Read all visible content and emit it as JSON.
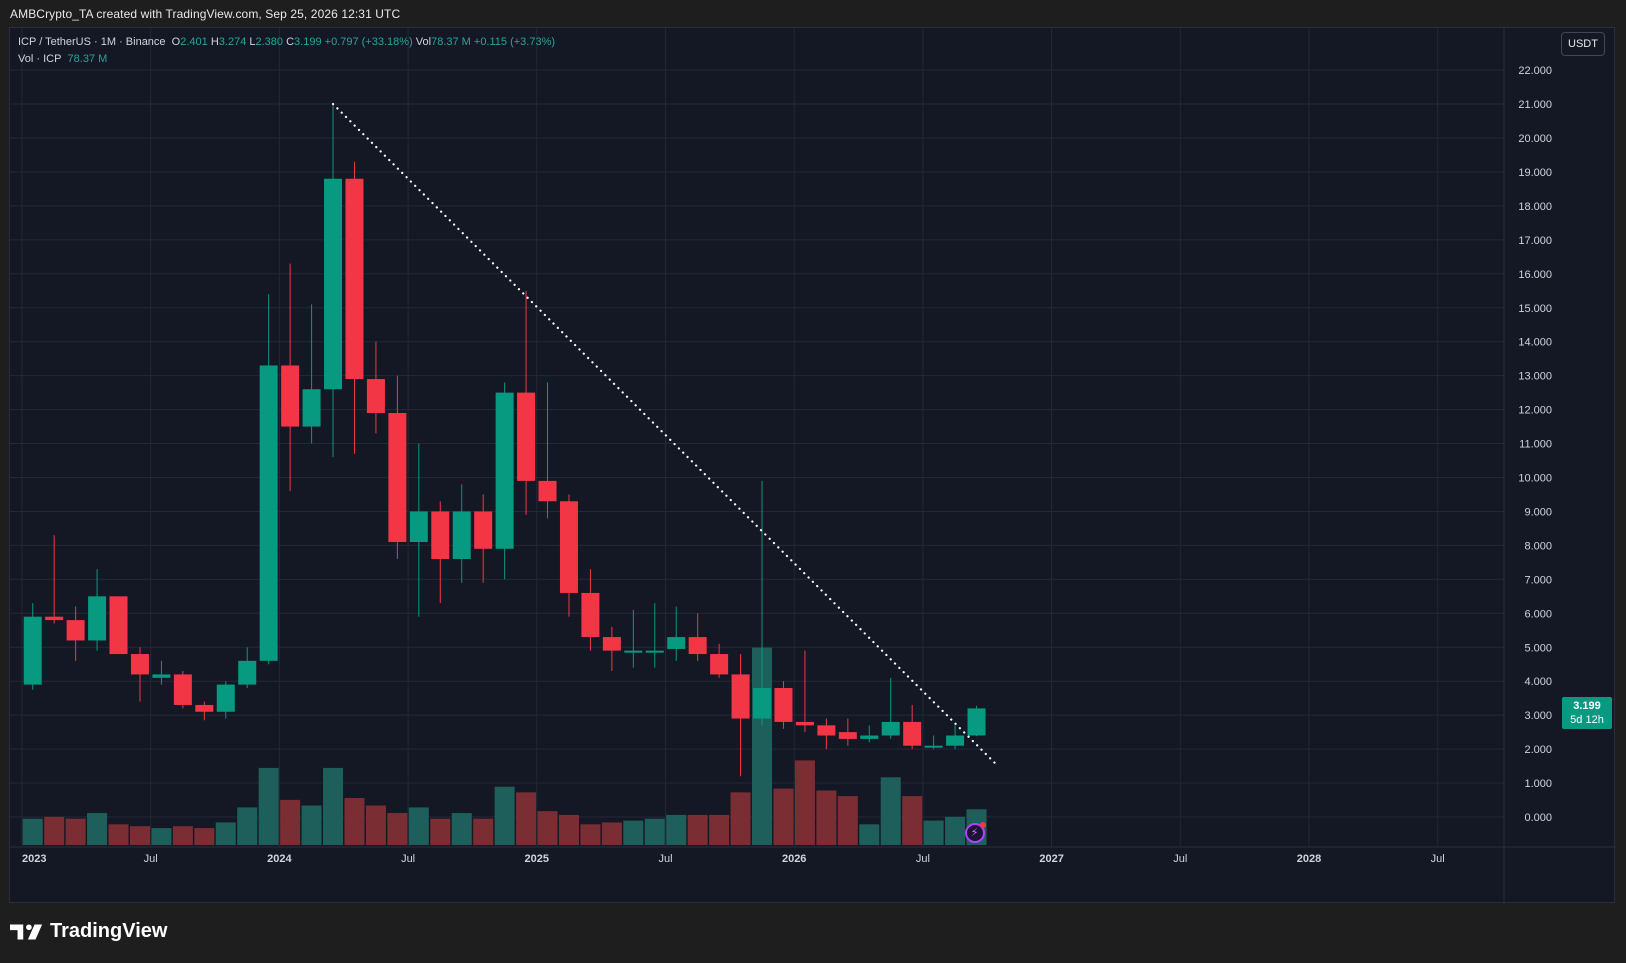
{
  "header": {
    "attribution": "AMBCrypto_TA created with TradingView.com, Sep 25, 2026 12:31 UTC"
  },
  "legend": {
    "symbol": "ICP / TetherUS · 1M · Binance",
    "open_label": "O",
    "open": "2.401",
    "high_label": "H",
    "high": "3.274",
    "low_label": "L",
    "low": "2.380",
    "close_label": "C",
    "close": "3.199",
    "change": "+0.797 (+33.18%)",
    "vol_label": "Vol",
    "vol": "78.37 M",
    "vol_change": "+0.115 (+3.73%)",
    "vol_series": "Vol · ICP",
    "vol_series_value": "78.37 M"
  },
  "unit_button": "USDT",
  "price_tag": {
    "price": "3.199",
    "countdown": "5d 12h"
  },
  "brand": {
    "name": "TradingView"
  },
  "colors": {
    "up": "#089981",
    "down": "#f23645",
    "vol_up": "#1f5f5b",
    "vol_down": "#7a2e33",
    "grid": "#232837",
    "text": "#d1d4dc"
  },
  "chart_data": {
    "type": "candlestick",
    "interval": "1M",
    "y_axis": {
      "side": "right",
      "ticks": [
        "0.000",
        "1.000",
        "2.000",
        "3.000",
        "4.000",
        "5.000",
        "6.000",
        "7.000",
        "8.000",
        "9.000",
        "10.000",
        "11.000",
        "12.000",
        "13.000",
        "14.000",
        "15.000",
        "16.000",
        "17.000",
        "18.000",
        "19.000",
        "20.000",
        "21.000",
        "22.000"
      ]
    },
    "x_axis": {
      "ticks": [
        {
          "label": "2023",
          "date": "2023-01"
        },
        {
          "label": "Jul",
          "date": "2023-07"
        },
        {
          "label": "2024",
          "date": "2024-01"
        },
        {
          "label": "Jul",
          "date": "2024-07"
        },
        {
          "label": "2025",
          "date": "2025-01"
        },
        {
          "label": "Jul",
          "date": "2025-07"
        },
        {
          "label": "2026",
          "date": "2026-01"
        },
        {
          "label": "Jul",
          "date": "2026-07"
        },
        {
          "label": "2027",
          "date": "2027-01"
        },
        {
          "label": "Jul",
          "date": "2027-07"
        },
        {
          "label": "2028",
          "date": "2028-01"
        },
        {
          "label": "Jul",
          "date": "2028-07"
        }
      ]
    },
    "grid": true,
    "candles": [
      {
        "date": "2023-01",
        "o": 3.9,
        "h": 6.3,
        "l": 3.75,
        "c": 5.9
      },
      {
        "date": "2023-02",
        "o": 5.9,
        "h": 8.3,
        "l": 5.7,
        "c": 5.8
      },
      {
        "date": "2023-03",
        "o": 5.8,
        "h": 6.2,
        "l": 4.6,
        "c": 5.2
      },
      {
        "date": "2023-04",
        "o": 5.2,
        "h": 7.3,
        "l": 4.9,
        "c": 6.5
      },
      {
        "date": "2023-05",
        "o": 6.5,
        "h": 6.5,
        "l": 4.8,
        "c": 4.8
      },
      {
        "date": "2023-06",
        "o": 4.8,
        "h": 5.0,
        "l": 3.4,
        "c": 4.2
      },
      {
        "date": "2023-07",
        "o": 4.1,
        "h": 4.6,
        "l": 3.9,
        "c": 4.2
      },
      {
        "date": "2023-08",
        "o": 4.2,
        "h": 4.3,
        "l": 3.2,
        "c": 3.3
      },
      {
        "date": "2023-09",
        "o": 3.3,
        "h": 3.4,
        "l": 2.85,
        "c": 3.1
      },
      {
        "date": "2023-10",
        "o": 3.1,
        "h": 4.0,
        "l": 2.9,
        "c": 3.9
      },
      {
        "date": "2023-11",
        "o": 3.9,
        "h": 5.0,
        "l": 3.8,
        "c": 4.6
      },
      {
        "date": "2023-12",
        "o": 4.6,
        "h": 15.4,
        "l": 4.5,
        "c": 13.3
      },
      {
        "date": "2024-01",
        "o": 13.3,
        "h": 16.3,
        "l": 9.6,
        "c": 11.5
      },
      {
        "date": "2024-02",
        "o": 11.5,
        "h": 15.1,
        "l": 11.0,
        "c": 12.6
      },
      {
        "date": "2024-03",
        "o": 12.6,
        "h": 21.0,
        "l": 10.6,
        "c": 18.8
      },
      {
        "date": "2024-04",
        "o": 18.8,
        "h": 19.3,
        "l": 10.7,
        "c": 12.9
      },
      {
        "date": "2024-05",
        "o": 12.9,
        "h": 14.0,
        "l": 11.3,
        "c": 11.9
      },
      {
        "date": "2024-06",
        "o": 11.9,
        "h": 13.0,
        "l": 7.6,
        "c": 8.1
      },
      {
        "date": "2024-07",
        "o": 8.1,
        "h": 11.0,
        "l": 5.9,
        "c": 9.0
      },
      {
        "date": "2024-08",
        "o": 9.0,
        "h": 9.3,
        "l": 6.3,
        "c": 7.6
      },
      {
        "date": "2024-09",
        "o": 7.6,
        "h": 9.8,
        "l": 6.9,
        "c": 9.0
      },
      {
        "date": "2024-10",
        "o": 9.0,
        "h": 9.5,
        "l": 6.9,
        "c": 7.9
      },
      {
        "date": "2024-11",
        "o": 7.9,
        "h": 12.8,
        "l": 7.0,
        "c": 12.5
      },
      {
        "date": "2024-12",
        "o": 12.5,
        "h": 15.5,
        "l": 8.9,
        "c": 9.9
      },
      {
        "date": "2025-01",
        "o": 9.9,
        "h": 12.8,
        "l": 8.8,
        "c": 9.3
      },
      {
        "date": "2025-02",
        "o": 9.3,
        "h": 9.5,
        "l": 5.9,
        "c": 6.6
      },
      {
        "date": "2025-03",
        "o": 6.6,
        "h": 7.3,
        "l": 4.9,
        "c": 5.3
      },
      {
        "date": "2025-04",
        "o": 5.3,
        "h": 5.6,
        "l": 4.3,
        "c": 4.9
      },
      {
        "date": "2025-05",
        "o": 4.9,
        "h": 6.1,
        "l": 4.4,
        "c": 4.9
      },
      {
        "date": "2025-06",
        "o": 4.9,
        "h": 6.3,
        "l": 4.4,
        "c": 4.9
      },
      {
        "date": "2025-07",
        "o": 4.95,
        "h": 6.2,
        "l": 4.6,
        "c": 5.3
      },
      {
        "date": "2025-08",
        "o": 5.3,
        "h": 6.0,
        "l": 4.6,
        "c": 4.8
      },
      {
        "date": "2025-09",
        "o": 4.8,
        "h": 5.1,
        "l": 4.1,
        "c": 4.2
      },
      {
        "date": "2025-10",
        "o": 4.2,
        "h": 4.8,
        "l": 1.2,
        "c": 2.9
      },
      {
        "date": "2025-11",
        "o": 2.9,
        "h": 9.9,
        "l": 2.7,
        "c": 3.8
      },
      {
        "date": "2025-12",
        "o": 3.8,
        "h": 4.0,
        "l": 2.6,
        "c": 2.8
      },
      {
        "date": "2026-01",
        "o": 2.8,
        "h": 4.9,
        "l": 2.5,
        "c": 2.7
      },
      {
        "date": "2026-02",
        "o": 2.7,
        "h": 2.9,
        "l": 2.0,
        "c": 2.4
      },
      {
        "date": "2026-03",
        "o": 2.5,
        "h": 2.9,
        "l": 2.1,
        "c": 2.3
      },
      {
        "date": "2026-04",
        "o": 2.3,
        "h": 2.7,
        "l": 2.2,
        "c": 2.4
      },
      {
        "date": "2026-05",
        "o": 2.4,
        "h": 4.1,
        "l": 2.3,
        "c": 2.8
      },
      {
        "date": "2026-06",
        "o": 2.8,
        "h": 3.3,
        "l": 2.0,
        "c": 2.1
      },
      {
        "date": "2026-07",
        "o": 2.1,
        "h": 2.4,
        "l": 2.0,
        "c": 2.1
      },
      {
        "date": "2026-08",
        "o": 2.1,
        "h": 2.7,
        "l": 2.0,
        "c": 2.4
      },
      {
        "date": "2026-09",
        "o": 2.401,
        "h": 3.274,
        "l": 2.38,
        "c": 3.199
      }
    ],
    "volume": {
      "axis_max": 3.0,
      "values": [
        0.7,
        0.75,
        0.7,
        0.85,
        0.55,
        0.5,
        0.45,
        0.5,
        0.45,
        0.6,
        1.0,
        2.05,
        1.2,
        1.05,
        2.05,
        1.25,
        1.05,
        0.85,
        1.0,
        0.7,
        0.85,
        0.7,
        1.55,
        1.4,
        0.9,
        0.8,
        0.55,
        0.6,
        0.65,
        0.7,
        0.8,
        0.8,
        0.8,
        1.4,
        5.25,
        1.5,
        2.25,
        1.45,
        1.3,
        0.55,
        1.8,
        1.3,
        0.65,
        0.75,
        0.95
      ]
    },
    "trendline": {
      "style": "dotted",
      "from": {
        "date": "2024-03",
        "value": 21.0
      },
      "to": {
        "date": "2026-10",
        "value": 1.5
      }
    }
  }
}
